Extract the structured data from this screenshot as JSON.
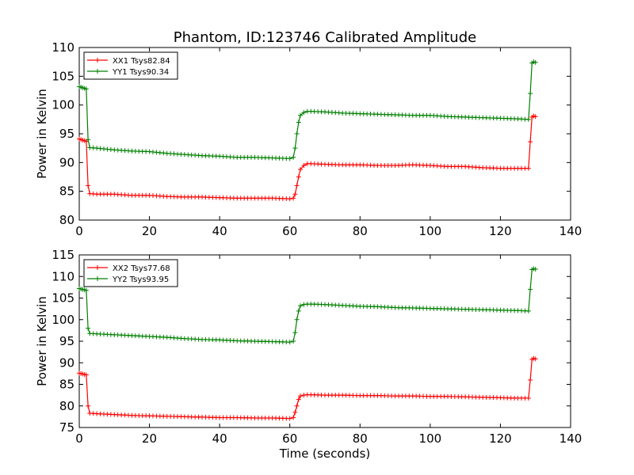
{
  "title": "Phantom, ID:123746 Calibrated Amplitude",
  "colors": {
    "xx": "#ff0000",
    "yy": "#008000"
  },
  "chart_data": [
    {
      "type": "line",
      "title": "Phantom, ID:123746 Calibrated Amplitude",
      "xlabel": "",
      "ylabel": "Power in Kelvin",
      "xlim": [
        0,
        140
      ],
      "ylim": [
        80,
        110
      ],
      "xticks": [
        0,
        20,
        40,
        60,
        80,
        100,
        120,
        140
      ],
      "yticks": [
        80,
        85,
        90,
        95,
        100,
        105,
        110
      ],
      "legend_position": "top-left",
      "grid": false,
      "series": [
        {
          "name": "XX1 Tsys82.84",
          "color": "#ff0000",
          "marker": "+",
          "x": [
            0,
            0.5,
            1,
            1.5,
            2,
            2.5,
            3,
            5,
            10,
            15,
            20,
            25,
            30,
            35,
            40,
            45,
            50,
            55,
            60,
            61,
            61.5,
            62,
            62.5,
            63,
            64,
            65,
            66,
            70,
            75,
            80,
            85,
            90,
            95,
            100,
            105,
            110,
            115,
            120,
            125,
            128,
            128.5,
            129,
            129.5,
            130
          ],
          "y": [
            94.1,
            94.0,
            93.9,
            93.8,
            93.7,
            86.0,
            84.6,
            84.5,
            84.5,
            84.3,
            84.3,
            84.1,
            84.0,
            84.0,
            83.9,
            83.8,
            83.8,
            83.8,
            83.7,
            83.8,
            84.5,
            86.0,
            87.5,
            88.8,
            89.5,
            89.8,
            89.8,
            89.7,
            89.6,
            89.6,
            89.5,
            89.5,
            89.6,
            89.5,
            89.3,
            89.3,
            89.1,
            89.0,
            89.0,
            89.0,
            93.6,
            97.9,
            98.1,
            98.0
          ]
        },
        {
          "name": "YY1 Tsys90.34",
          "color": "#008000",
          "marker": "+",
          "x": [
            0,
            0.5,
            1,
            1.5,
            2,
            2.5,
            3,
            5,
            10,
            15,
            20,
            25,
            30,
            35,
            40,
            45,
            50,
            55,
            60,
            61,
            61.5,
            62,
            62.5,
            63,
            64,
            65,
            66,
            70,
            75,
            80,
            85,
            90,
            95,
            100,
            105,
            110,
            115,
            120,
            125,
            128,
            128.5,
            129,
            129.5,
            130
          ],
          "y": [
            103.2,
            103.1,
            103.0,
            102.9,
            102.8,
            94.0,
            92.6,
            92.5,
            92.2,
            92.0,
            91.9,
            91.6,
            91.4,
            91.2,
            91.1,
            90.9,
            90.9,
            90.8,
            90.7,
            90.9,
            92.5,
            95.0,
            97.0,
            98.2,
            98.7,
            98.9,
            98.9,
            98.8,
            98.6,
            98.5,
            98.4,
            98.3,
            98.2,
            98.2,
            98.0,
            97.9,
            97.8,
            97.7,
            97.6,
            97.5,
            102.0,
            107.3,
            107.5,
            107.4
          ]
        }
      ]
    },
    {
      "type": "line",
      "title": "",
      "xlabel": "Time (seconds)",
      "ylabel": "Power in Kelvin",
      "xlim": [
        0,
        140
      ],
      "ylim": [
        75,
        115
      ],
      "xticks": [
        0,
        20,
        40,
        60,
        80,
        100,
        120,
        140
      ],
      "yticks": [
        75,
        80,
        85,
        90,
        95,
        100,
        105,
        110,
        115
      ],
      "legend_position": "top-left",
      "grid": false,
      "series": [
        {
          "name": "XX2 Tsys77.68",
          "color": "#ff0000",
          "marker": "+",
          "x": [
            0,
            0.5,
            1,
            1.5,
            2,
            2.5,
            3,
            5,
            10,
            15,
            20,
            25,
            30,
            35,
            40,
            45,
            50,
            55,
            60,
            61,
            61.5,
            62,
            62.5,
            63,
            64,
            65,
            66,
            70,
            75,
            80,
            85,
            90,
            95,
            100,
            105,
            110,
            115,
            120,
            125,
            128,
            128.5,
            129,
            129.5,
            130
          ],
          "y": [
            87.6,
            87.5,
            87.4,
            87.3,
            87.2,
            80.0,
            78.3,
            78.2,
            78.0,
            77.8,
            77.7,
            77.6,
            77.5,
            77.4,
            77.3,
            77.3,
            77.2,
            77.2,
            77.1,
            77.3,
            78.5,
            80.0,
            81.5,
            82.3,
            82.5,
            82.6,
            82.6,
            82.5,
            82.5,
            82.4,
            82.4,
            82.3,
            82.3,
            82.2,
            82.2,
            82.1,
            82.0,
            81.9,
            81.8,
            81.8,
            86.0,
            90.8,
            91.0,
            90.9
          ]
        },
        {
          "name": "YY2 Tsys93.95",
          "color": "#008000",
          "marker": "+",
          "x": [
            0,
            0.5,
            1,
            1.5,
            2,
            2.5,
            3,
            5,
            10,
            15,
            20,
            25,
            30,
            35,
            40,
            45,
            50,
            55,
            60,
            61,
            61.5,
            62,
            62.5,
            63,
            64,
            65,
            66,
            70,
            75,
            80,
            85,
            90,
            95,
            100,
            105,
            110,
            115,
            120,
            125,
            128,
            128.5,
            129,
            129.5,
            130
          ],
          "y": [
            107.2,
            107.1,
            107.0,
            106.9,
            106.8,
            98.0,
            96.8,
            96.7,
            96.5,
            96.3,
            96.1,
            95.9,
            95.6,
            95.4,
            95.3,
            95.1,
            95.0,
            94.9,
            94.8,
            95.0,
            97.0,
            100.0,
            102.0,
            103.2,
            103.5,
            103.6,
            103.6,
            103.5,
            103.3,
            103.1,
            103.0,
            102.8,
            102.7,
            102.6,
            102.5,
            102.4,
            102.3,
            102.2,
            102.1,
            102.0,
            107.0,
            111.6,
            111.8,
            111.7
          ]
        }
      ]
    }
  ]
}
